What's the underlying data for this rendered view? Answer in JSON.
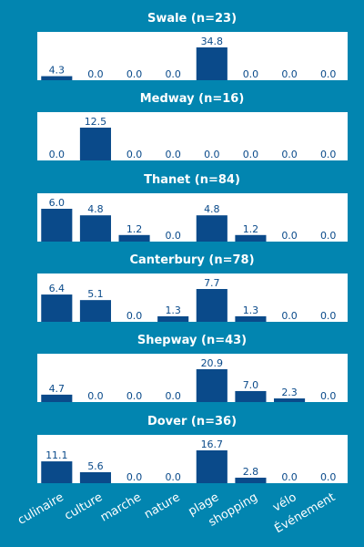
{
  "colors": {
    "background": "#0285b0",
    "panel": "#ffffff",
    "bar": "#0a4a8a",
    "value_label": "#0a4a8a",
    "title": "#ffffff",
    "tick_label": "#ffffff"
  },
  "chart_data": {
    "type": "bar",
    "categories": [
      "culinaire",
      "culture",
      "marche",
      "nature",
      "plage",
      "shopping",
      "vélo",
      "Événement"
    ],
    "panels": [
      {
        "title": "Swale (n=23)",
        "values": [
          4.3,
          0.0,
          0.0,
          0.0,
          34.8,
          0.0,
          0.0,
          0.0
        ]
      },
      {
        "title": "Medway (n=16)",
        "values": [
          0.0,
          12.5,
          0.0,
          0.0,
          0.0,
          0.0,
          0.0,
          0.0
        ]
      },
      {
        "title": "Thanet (n=84)",
        "values": [
          6.0,
          4.8,
          1.2,
          0.0,
          4.8,
          1.2,
          0.0,
          0.0
        ]
      },
      {
        "title": "Canterbury (n=78)",
        "values": [
          6.4,
          5.1,
          0.0,
          1.3,
          7.7,
          1.3,
          0.0,
          0.0
        ]
      },
      {
        "title": "Shepway (n=43)",
        "values": [
          4.7,
          0.0,
          0.0,
          0.0,
          20.9,
          7.0,
          2.3,
          0.0
        ]
      },
      {
        "title": "Dover (n=36)",
        "values": [
          11.1,
          5.6,
          0.0,
          0.0,
          16.7,
          2.8,
          0.0,
          0.0
        ]
      }
    ],
    "grid": false,
    "legend": "none"
  }
}
